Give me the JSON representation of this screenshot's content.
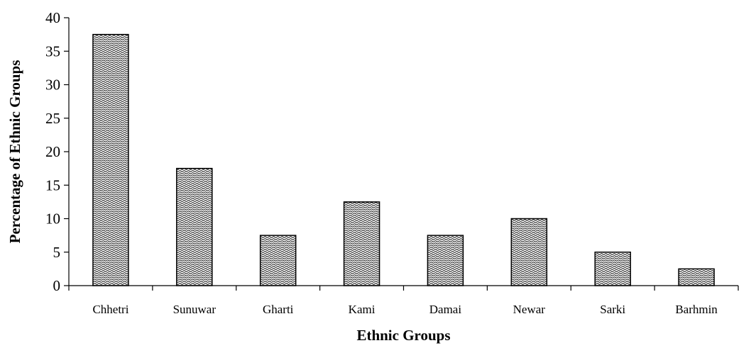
{
  "chart_data": {
    "type": "bar",
    "categories": [
      "Chhetri",
      "Sunuwar",
      "Gharti",
      "Kami",
      "Damai",
      "Newar",
      "Sarki",
      "Barhmin"
    ],
    "values": [
      37.5,
      17.5,
      7.5,
      12.5,
      7.5,
      10,
      5,
      2.5
    ],
    "xlabel": "Ethnic Groups",
    "ylabel": "Percentage of Ethnic Groups",
    "ylim": [
      0,
      40
    ],
    "yticks": [
      0,
      5,
      10,
      15,
      20,
      25,
      30,
      35,
      40
    ],
    "grid": false,
    "legend": "none",
    "bar_fill": "dotted-wave-pattern",
    "colors": {
      "bar_fg": "#000000",
      "bar_bg": "#ffffff"
    }
  }
}
